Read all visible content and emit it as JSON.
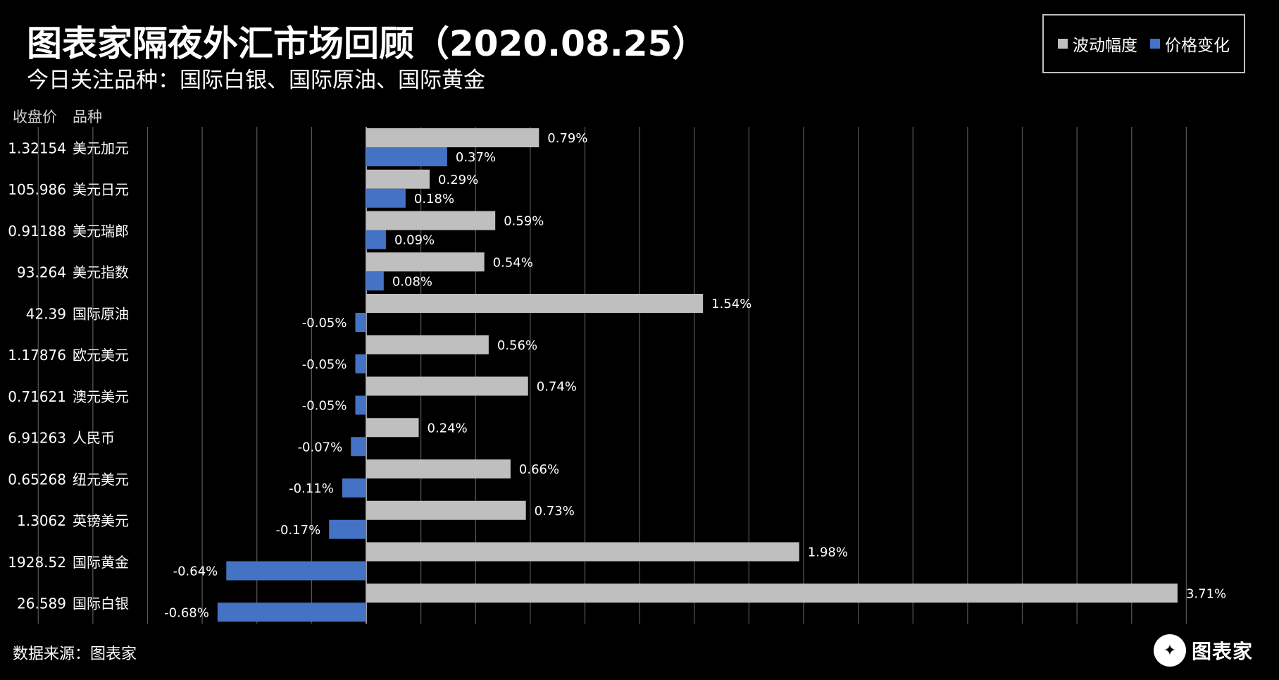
{
  "header": {
    "title": "图表家隔夜外汇市场回顾（2020.08.25）",
    "subtitle": "今日关注品种：国际白银、国际原油、国际黄金"
  },
  "legend": {
    "volatility_label": "波动幅度",
    "price_change_label": "价格变化"
  },
  "columns": {
    "close_label": "收盘价",
    "variety_label": "品种"
  },
  "footer": {
    "source": "数据来源：图表家",
    "logo_text": "图表家"
  },
  "colors": {
    "volatility": "#bfbfbf",
    "price_change": "#4472c4",
    "grid": "#595959",
    "background": "#000000"
  },
  "chart_data": {
    "type": "bar",
    "orientation": "horizontal",
    "legend_position": "top-right",
    "grid": true,
    "xlim": [
      -0.05,
      0.0375
    ],
    "categories": [
      "美元加元",
      "美元日元",
      "美元瑞郎",
      "美元指数",
      "国际原油",
      "欧元美元",
      "澳元美元",
      "人民币",
      "纽元美元",
      "英镑美元",
      "国际黄金",
      "国际白银"
    ],
    "close_prices": [
      "1.32154",
      "105.986",
      "0.91188",
      "93.264",
      "42.39",
      "1.17876",
      "0.71621",
      "6.91263",
      "0.65268",
      "1.3062",
      "1928.52",
      "26.589"
    ],
    "series": [
      {
        "name": "波动幅度",
        "values": [
          0.0079,
          0.0029,
          0.0059,
          0.0054,
          0.0154,
          0.0056,
          0.0074,
          0.0024,
          0.0066,
          0.0073,
          0.0198,
          0.0371
        ],
        "labels": [
          "0.79%",
          "0.29%",
          "0.59%",
          "0.54%",
          "1.54%",
          "0.56%",
          "0.74%",
          "0.24%",
          "0.66%",
          "0.73%",
          "1.98%",
          "3.71%"
        ]
      },
      {
        "name": "价格变化",
        "values": [
          0.0037,
          0.0018,
          0.0009,
          0.0008,
          -0.0005,
          -0.0005,
          -0.0005,
          -0.0007,
          -0.0011,
          -0.0017,
          -0.0064,
          -0.0068
        ],
        "labels": [
          "0.37%",
          "0.18%",
          "0.09%",
          "0.08%",
          "-0.05%",
          "-0.05%",
          "-0.05%",
          "-0.07%",
          "-0.11%",
          "-0.17%",
          "-0.64%",
          "-0.68%"
        ]
      }
    ]
  }
}
